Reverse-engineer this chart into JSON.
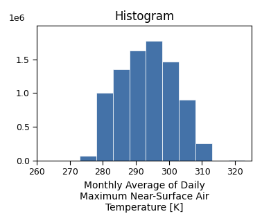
{
  "title": "Histogram",
  "xlabel": "Monthly Average of Daily\nMaximum Near-Surface Air\nTemperature [K]",
  "ylabel": "",
  "bar_edges": [
    268,
    273,
    278,
    283,
    288,
    293,
    298,
    303,
    308,
    313,
    318,
    323
  ],
  "bar_heights": [
    0.0,
    70000,
    1000000,
    1350000,
    1630000,
    1780000,
    1470000,
    900000,
    250000,
    0.0,
    10000
  ],
  "bar_color": "#4472a8",
  "xlim": [
    260,
    325
  ],
  "ylim": [
    0,
    2000000
  ],
  "xticks": [
    260,
    270,
    280,
    290,
    300,
    310,
    320
  ],
  "ytick_values": [
    0,
    500000,
    1000000,
    1500000
  ],
  "ytick_labels": [
    "0.0",
    "0.5",
    "1.0",
    "1.5"
  ],
  "offset_text": "1e6",
  "figsize": [
    3.78,
    3.22
  ],
  "dpi": 100
}
